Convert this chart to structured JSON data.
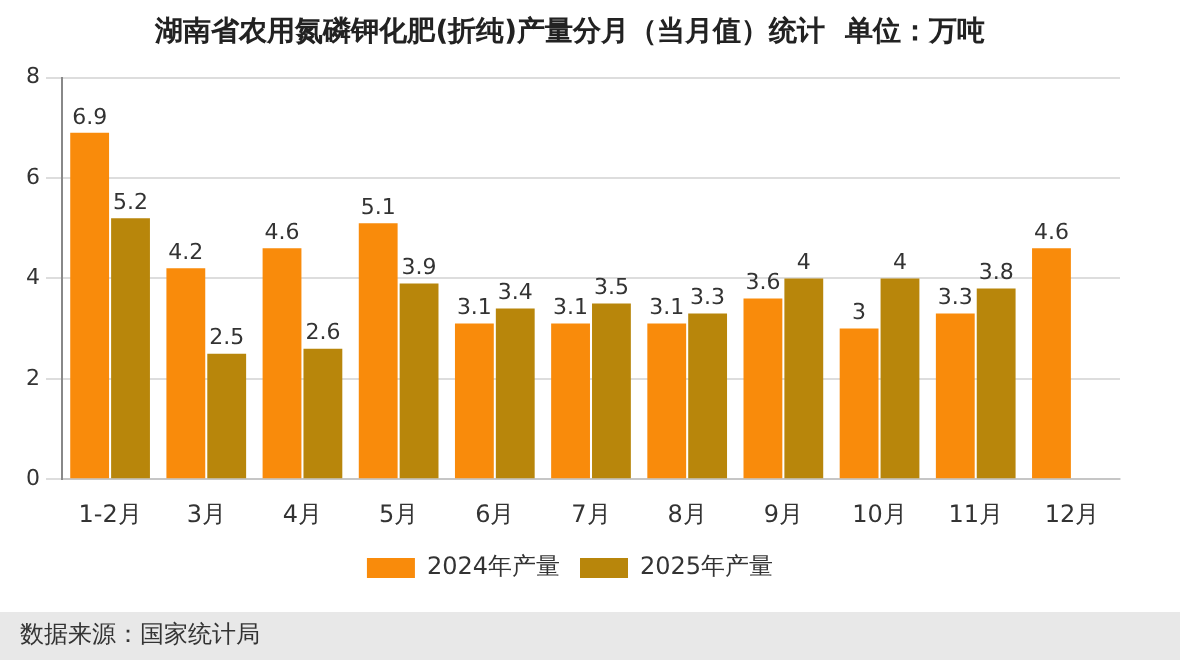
{
  "chart_data": {
    "type": "bar",
    "title": "湖南省农用氮磷钾化肥(折纯)产量分月（当月值）统计  单位：万吨",
    "categories": [
      "1-2月",
      "3月",
      "4月",
      "5月",
      "6月",
      "7月",
      "8月",
      "9月",
      "10月",
      "11月",
      "12月"
    ],
    "series": [
      {
        "name": "2024年产量",
        "color": "#f98b0b",
        "values": [
          6.9,
          4.2,
          4.6,
          5.1,
          3.1,
          3.1,
          3.1,
          3.6,
          3,
          3.3,
          4.6
        ]
      },
      {
        "name": "2025年产量",
        "color": "#b8860b",
        "values": [
          5.2,
          2.5,
          2.6,
          3.9,
          3.4,
          3.5,
          3.3,
          4,
          4,
          3.8,
          null
        ]
      }
    ],
    "ylim": [
      0,
      8
    ],
    "yticks": [
      0,
      2,
      4,
      6,
      8
    ],
    "grid": "y",
    "legend": "bottom",
    "data_labels": true,
    "annotations": [
      "数据来源：国家统计局"
    ]
  }
}
